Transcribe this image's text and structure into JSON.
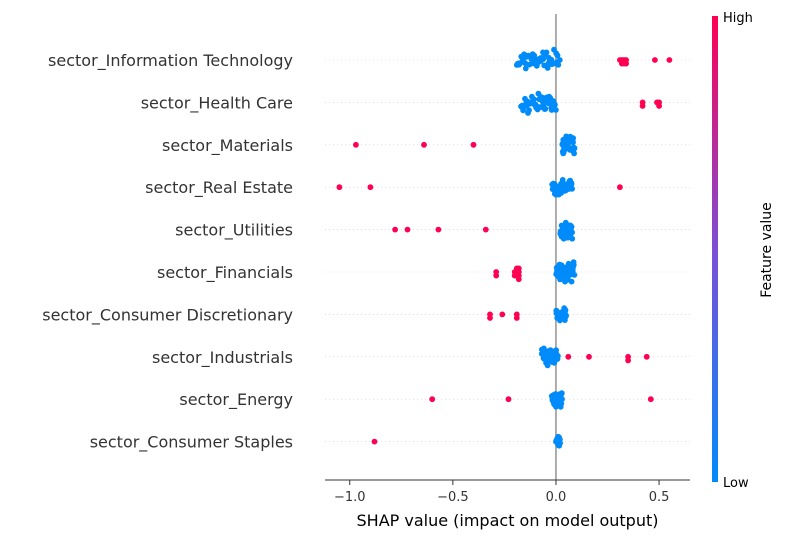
{
  "chart_data": {
    "type": "scatter",
    "subtype": "shap-beeswarm",
    "xlabel": "SHAP value (impact on model output)",
    "xlim": [
      -1.12,
      0.65
    ],
    "xticks": [
      {
        "value": -1.0,
        "label": "−1.0"
      },
      {
        "value": -0.5,
        "label": "−0.5"
      },
      {
        "value": 0.0,
        "label": "0.0"
      },
      {
        "value": 0.5,
        "label": "0.5"
      }
    ],
    "colorbar": {
      "title": "Feature value",
      "high_label": "High",
      "low_label": "Low",
      "high_color": "#ff0052",
      "low_color": "#008bfb",
      "mid_color": "#7c4fd6"
    },
    "colors": {
      "high": "#ff0052",
      "low": "#008bfb",
      "zero_line": "#999999"
    },
    "features": [
      {
        "name": "sector_Information Technology",
        "low_range": [
          -0.19,
          0.02
        ],
        "low_count": 46,
        "high_values": [
          0.31,
          0.32,
          0.32,
          0.33,
          0.33,
          0.34,
          0.34,
          0.48,
          0.55
        ]
      },
      {
        "name": "sector_Health Care",
        "low_range": [
          -0.17,
          0.0
        ],
        "low_count": 46,
        "high_values": [
          0.42,
          0.42,
          0.49,
          0.5,
          0.5
        ]
      },
      {
        "name": "sector_Materials",
        "low_range": [
          0.03,
          0.09
        ],
        "low_count": 44,
        "high_values": [
          -0.97,
          -0.64,
          -0.4
        ]
      },
      {
        "name": "sector_Real Estate",
        "low_range": [
          -0.02,
          0.08
        ],
        "low_count": 42,
        "high_values": [
          -1.05,
          -0.9,
          0.31
        ]
      },
      {
        "name": "sector_Utilities",
        "low_range": [
          0.02,
          0.08
        ],
        "low_count": 42,
        "high_values": [
          -0.78,
          -0.72,
          -0.57,
          -0.34
        ]
      },
      {
        "name": "sector_Financials",
        "low_range": [
          0.0,
          0.09
        ],
        "low_count": 50,
        "high_values": [
          -0.29,
          -0.29,
          -0.2,
          -0.2,
          -0.19,
          -0.19,
          -0.19,
          -0.18,
          -0.18,
          -0.18,
          -0.18
        ]
      },
      {
        "name": "sector_Consumer Discretionary",
        "low_range": [
          0.0,
          0.05
        ],
        "low_count": 30,
        "high_values": [
          -0.32,
          -0.32,
          -0.26,
          -0.19,
          -0.19
        ]
      },
      {
        "name": "sector_Industrials",
        "low_range": [
          -0.07,
          0.01
        ],
        "low_count": 40,
        "high_values": [
          0.06,
          0.16,
          0.35,
          0.35,
          0.44
        ]
      },
      {
        "name": "sector_Energy",
        "low_range": [
          -0.02,
          0.03
        ],
        "low_count": 32,
        "high_values": [
          -0.6,
          -0.23,
          0.46
        ]
      },
      {
        "name": "sector_Consumer Staples",
        "low_range": [
          0.0,
          0.02
        ],
        "low_count": 22,
        "high_values": [
          -0.88
        ]
      }
    ]
  }
}
